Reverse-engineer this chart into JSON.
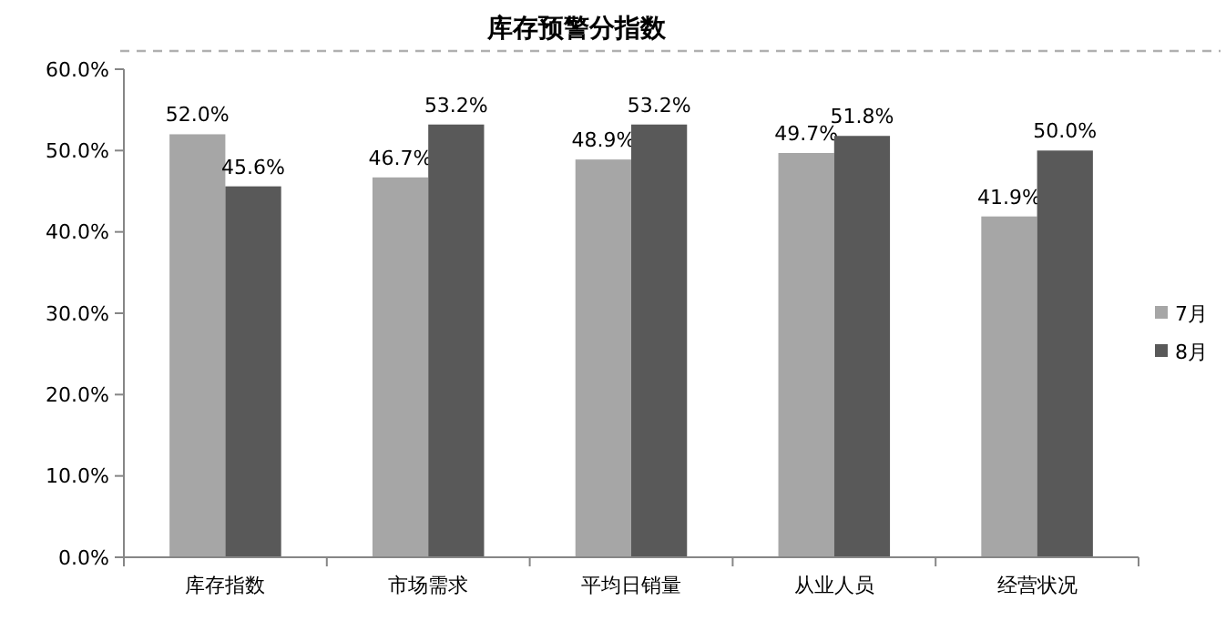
{
  "chart_data": {
    "type": "bar",
    "title": "库存预警分指数",
    "categories": [
      "库存指数",
      "市场需求",
      "平均日销量",
      "从业人员",
      "经营状况"
    ],
    "series": [
      {
        "name": "7月",
        "color": "#a6a6a6",
        "values": [
          52.0,
          46.7,
          48.9,
          49.7,
          41.9
        ],
        "value_labels": [
          "52.0%",
          "46.7%",
          "48.9%",
          "49.7%",
          "41.9%"
        ]
      },
      {
        "name": "8月",
        "color": "#595959",
        "values": [
          45.6,
          53.2,
          53.2,
          51.8,
          50.0
        ],
        "value_labels": [
          "45.6%",
          "53.2%",
          "53.2%",
          "51.8%",
          "50.0%"
        ]
      }
    ],
    "ylim": [
      0,
      60
    ],
    "yticks": [
      {
        "value": 0,
        "label": "0.0%"
      },
      {
        "value": 10,
        "label": "10.0%"
      },
      {
        "value": 20,
        "label": "20.0%"
      },
      {
        "value": 30,
        "label": "30.0%"
      },
      {
        "value": 40,
        "label": "40.0%"
      },
      {
        "value": 50,
        "label": "50.0%"
      },
      {
        "value": 60,
        "label": "60.0%"
      }
    ],
    "grid": false,
    "legend": "right"
  }
}
